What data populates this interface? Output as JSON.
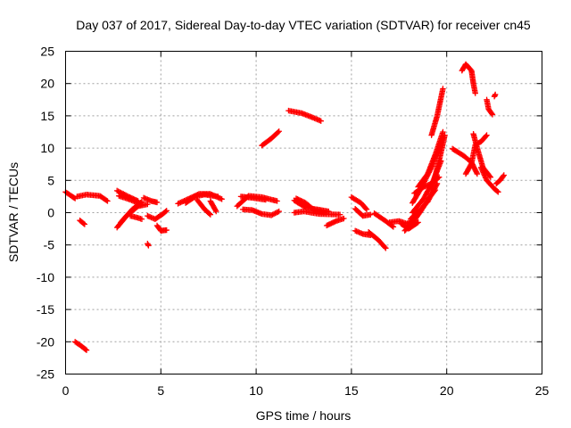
{
  "chart_data": {
    "type": "scatter",
    "title": "Day 037 of 2017, Sidereal Day-to-day VTEC variation (SDTVAR) for receiver cn45",
    "xlabel": "GPS time / hours",
    "ylabel": "SDTVAR / TECUs",
    "xlim": [
      0,
      25
    ],
    "ylim": [
      -25,
      25
    ],
    "xticks": [
      "0",
      "5",
      "10",
      "15",
      "20",
      "25"
    ],
    "yticks": [
      "25",
      "20",
      "15",
      "10",
      "5",
      "0",
      "-5",
      "-10",
      "-15",
      "-20",
      "-25"
    ],
    "grid": true,
    "marker": "plus",
    "color": "#ff0000",
    "tracks": [
      [
        [
          0.0,
          3.2
        ],
        [
          0.3,
          2.6
        ],
        [
          0.5,
          2.2
        ]
      ],
      [
        [
          0.6,
          2.5
        ],
        [
          1.1,
          2.8
        ],
        [
          1.8,
          2.6
        ],
        [
          2.2,
          1.8
        ]
      ],
      [
        [
          0.75,
          -1.2
        ],
        [
          1.0,
          -1.8
        ]
      ],
      [
        [
          0.5,
          -20.0
        ],
        [
          0.8,
          -20.6
        ],
        [
          1.1,
          -21.3
        ]
      ],
      [
        [
          2.7,
          3.4
        ],
        [
          3.3,
          2.5
        ],
        [
          3.8,
          1.8
        ]
      ],
      [
        [
          2.8,
          2.6
        ],
        [
          3.4,
          2.0
        ],
        [
          4.0,
          1.2
        ]
      ],
      [
        [
          2.7,
          -2.3
        ],
        [
          3.2,
          -0.5
        ],
        [
          3.8,
          1.0
        ],
        [
          4.3,
          1.3
        ]
      ],
      [
        [
          2.9,
          -1.5
        ],
        [
          3.5,
          0.5
        ],
        [
          4.0,
          1.7
        ]
      ],
      [
        [
          3.4,
          -0.5
        ],
        [
          3.8,
          -0.8
        ],
        [
          4.0,
          -1.0
        ]
      ],
      [
        [
          4.1,
          2.3
        ],
        [
          4.5,
          1.8
        ],
        [
          4.8,
          1.6
        ]
      ],
      [
        [
          4.3,
          -0.5
        ],
        [
          4.7,
          -1.0
        ],
        [
          5.1,
          -0.2
        ],
        [
          5.3,
          0.3
        ]
      ],
      [
        [
          4.3,
          -4.8
        ],
        [
          4.35,
          -5.1
        ]
      ],
      [
        [
          4.8,
          -2.0
        ],
        [
          5.0,
          -2.8
        ],
        [
          5.3,
          -2.7
        ]
      ],
      [
        [
          5.9,
          1.4
        ],
        [
          6.5,
          2.2
        ],
        [
          7.0,
          2.9
        ],
        [
          7.6,
          2.9
        ],
        [
          8.2,
          2.1
        ]
      ],
      [
        [
          6.3,
          1.5
        ],
        [
          6.8,
          2.5
        ],
        [
          7.3,
          2.8
        ],
        [
          8.0,
          2.5
        ]
      ],
      [
        [
          6.9,
          2.0
        ],
        [
          7.3,
          0.5
        ],
        [
          7.6,
          -0.3
        ]
      ],
      [
        [
          7.6,
          1.8
        ],
        [
          7.9,
          0.2
        ]
      ],
      [
        [
          9.0,
          1.0
        ],
        [
          9.6,
          2.6
        ],
        [
          10.3,
          2.4
        ],
        [
          11.1,
          1.8
        ]
      ],
      [
        [
          9.2,
          2.5
        ],
        [
          9.8,
          2.3
        ],
        [
          10.5,
          2.0
        ]
      ],
      [
        [
          9.3,
          0.5
        ],
        [
          9.8,
          0.4
        ],
        [
          10.3,
          -0.2
        ],
        [
          10.8,
          -0.4
        ],
        [
          11.2,
          0.2
        ]
      ],
      [
        [
          10.3,
          10.4
        ],
        [
          10.8,
          11.5
        ],
        [
          11.2,
          12.6
        ]
      ],
      [
        [
          11.7,
          15.8
        ],
        [
          12.4,
          15.4
        ],
        [
          13.0,
          14.7
        ],
        [
          13.4,
          14.2
        ]
      ],
      [
        [
          12.0,
          1.9
        ],
        [
          12.6,
          0.8
        ],
        [
          13.2,
          0.5
        ],
        [
          13.8,
          0.2
        ]
      ],
      [
        [
          12.1,
          2.2
        ],
        [
          12.6,
          1.5
        ],
        [
          13.0,
          0.5
        ],
        [
          13.6,
          0.0
        ]
      ],
      [
        [
          12.0,
          0.0
        ],
        [
          12.5,
          0.2
        ],
        [
          13.3,
          -0.2
        ],
        [
          14.4,
          -0.3
        ]
      ],
      [
        [
          13.7,
          -2.0
        ],
        [
          14.2,
          -1.3
        ],
        [
          14.6,
          -0.9
        ]
      ],
      [
        [
          15.0,
          2.4
        ],
        [
          15.5,
          1.5
        ],
        [
          15.8,
          0.5
        ]
      ],
      [
        [
          15.2,
          0.6
        ],
        [
          15.6,
          -0.5
        ],
        [
          16.0,
          -0.3
        ]
      ],
      [
        [
          15.2,
          -2.8
        ],
        [
          15.6,
          -3.3
        ],
        [
          16.0,
          -3.5
        ]
      ],
      [
        [
          15.9,
          -3.0
        ],
        [
          16.4,
          -4.2
        ],
        [
          16.8,
          -5.5
        ]
      ],
      [
        [
          16.2,
          -0.1
        ],
        [
          16.8,
          -1.3
        ],
        [
          17.2,
          -2.2
        ]
      ],
      [
        [
          17.0,
          -1.5
        ],
        [
          17.5,
          -1.3
        ],
        [
          17.9,
          -1.7
        ],
        [
          18.2,
          -1.4
        ]
      ],
      [
        [
          17.6,
          -1.7
        ],
        [
          18.0,
          -2.5
        ],
        [
          18.5,
          -1.5
        ]
      ],
      [
        [
          17.8,
          -2.8
        ],
        [
          18.3,
          -1.2
        ],
        [
          18.7,
          0.5
        ],
        [
          19.0,
          2.0
        ],
        [
          19.4,
          3.5
        ]
      ],
      [
        [
          18.1,
          -1.0
        ],
        [
          18.6,
          0.4
        ],
        [
          19.0,
          1.7
        ],
        [
          19.5,
          4.5
        ]
      ],
      [
        [
          18.2,
          0.0
        ],
        [
          18.8,
          2.2
        ],
        [
          19.3,
          5.0
        ],
        [
          19.7,
          8.0
        ]
      ],
      [
        [
          18.2,
          1.5
        ],
        [
          18.6,
          3.5
        ],
        [
          19.2,
          7.0
        ],
        [
          19.7,
          11.0
        ]
      ],
      [
        [
          18.3,
          3.0
        ],
        [
          18.8,
          4.0
        ],
        [
          19.2,
          4.5
        ],
        [
          19.6,
          5.5
        ]
      ],
      [
        [
          18.5,
          4.0
        ],
        [
          19.0,
          6.0
        ],
        [
          19.4,
          9.0
        ],
        [
          19.8,
          12.5
        ]
      ],
      [
        [
          19.2,
          3.5
        ],
        [
          19.6,
          8.0
        ],
        [
          19.9,
          12.0
        ]
      ],
      [
        [
          19.2,
          12.0
        ],
        [
          19.5,
          15.0
        ],
        [
          19.8,
          19.2
        ]
      ],
      [
        [
          20.3,
          9.9
        ],
        [
          20.9,
          8.8
        ],
        [
          21.3,
          7.8
        ],
        [
          21.6,
          6.0
        ]
      ],
      [
        [
          20.8,
          22.0
        ],
        [
          21.0,
          23.0
        ],
        [
          21.3,
          22.0
        ],
        [
          21.4,
          20.0
        ],
        [
          21.5,
          18.5
        ]
      ],
      [
        [
          21.0,
          6.0
        ],
        [
          21.3,
          7.6
        ],
        [
          21.5,
          10.5
        ],
        [
          21.8,
          11.0
        ],
        [
          22.1,
          12.0
        ]
      ],
      [
        [
          21.4,
          12.2
        ],
        [
          21.6,
          10.0
        ],
        [
          21.9,
          7.0
        ],
        [
          22.3,
          5.5
        ]
      ],
      [
        [
          21.8,
          7.0
        ],
        [
          22.1,
          5.0
        ],
        [
          22.5,
          3.7
        ],
        [
          22.7,
          3.2
        ]
      ],
      [
        [
          22.6,
          4.5
        ],
        [
          22.8,
          5.0
        ],
        [
          23.0,
          5.8
        ]
      ],
      [
        [
          22.1,
          17.5
        ],
        [
          22.2,
          16.0
        ],
        [
          22.4,
          15.2
        ]
      ],
      [
        [
          22.5,
          18.0
        ],
        [
          22.55,
          18.3
        ]
      ]
    ]
  }
}
